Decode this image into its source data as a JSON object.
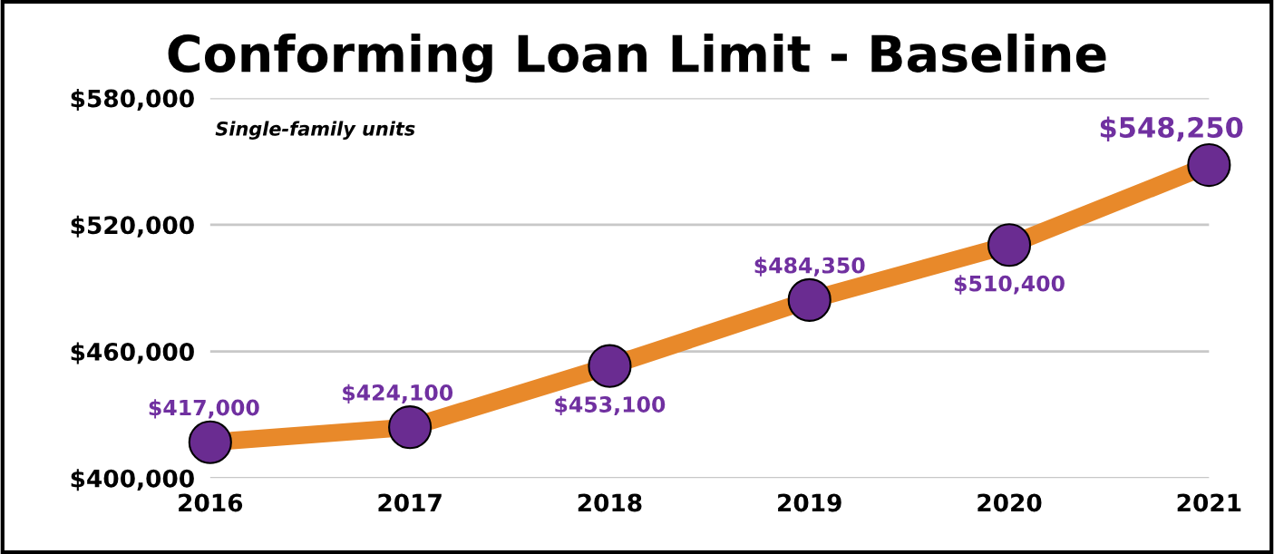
{
  "chart_data": {
    "type": "line",
    "title": "Conforming Loan Limit - Baseline",
    "subtitle": "Single-family units",
    "categories": [
      "2016",
      "2017",
      "2018",
      "2019",
      "2020",
      "2021"
    ],
    "series": [
      {
        "color": "#e8892a",
        "line_style": "solid",
        "values": [
          417000,
          424100,
          453100,
          484350,
          510400,
          548250
        ],
        "value_labels": [
          "$417,000",
          "$424,100",
          "$453,100",
          "$484,350",
          "$510,400",
          "$548,250"
        ]
      },
      {
        "type": "scatter",
        "color": "#6a2c91",
        "marker": "circle",
        "values": [
          417000,
          424100,
          453100,
          484350,
          510400,
          548250
        ]
      }
    ],
    "ylim": [
      400000,
      580000
    ],
    "yticks": [
      {
        "value": 400000,
        "label": "$400,000"
      },
      {
        "value": 460000,
        "label": "$460,000"
      },
      {
        "value": 520000,
        "label": "$520,000"
      },
      {
        "value": 580000,
        "label": "$580,000"
      }
    ],
    "grid": "y"
  }
}
